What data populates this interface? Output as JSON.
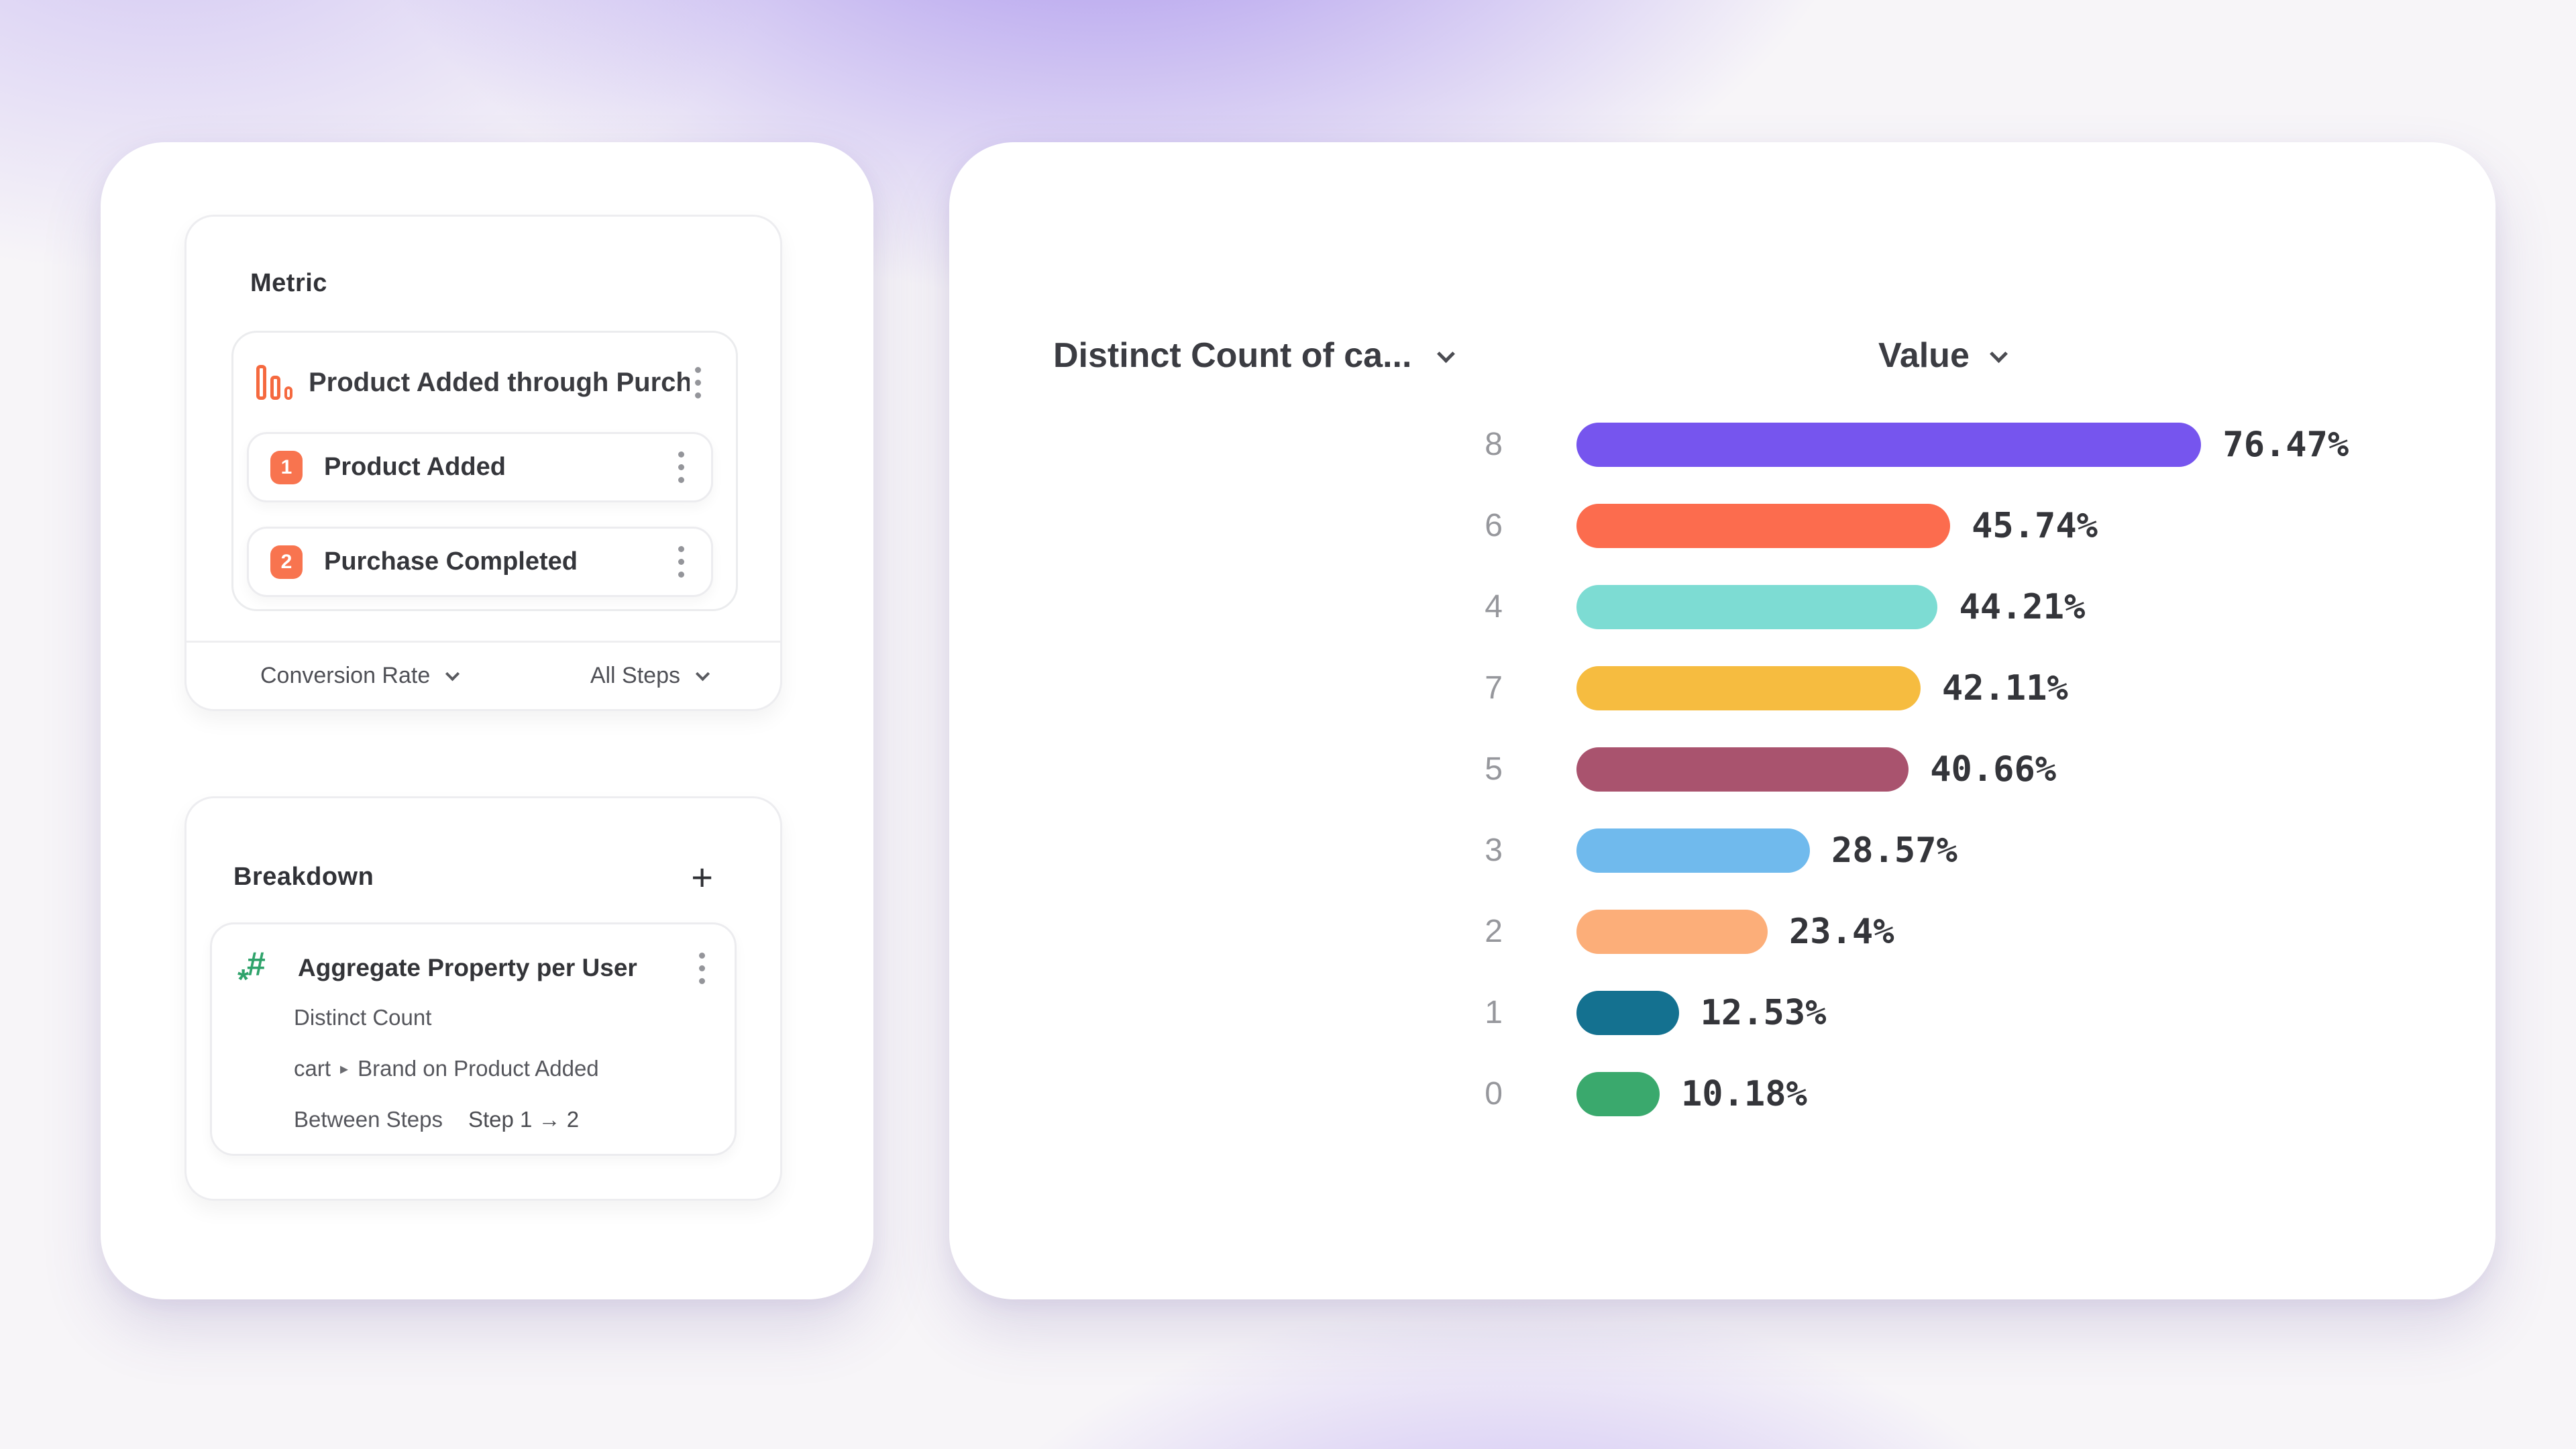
{
  "colors": {
    "accent_orange": "#f8744f",
    "icon_green": "#2fa36b",
    "background_purple": "#8668e8"
  },
  "metric_panel": {
    "title": "Metric",
    "funnel": {
      "title": "Product Added through Purcha...",
      "steps": [
        {
          "number": "1",
          "label": "Product Added"
        },
        {
          "number": "2",
          "label": "Purchase Completed"
        }
      ],
      "measure_dropdown": "Conversion Rate",
      "steps_dropdown": "All Steps"
    }
  },
  "breakdown_panel": {
    "title": "Breakdown",
    "add_button": "+",
    "item": {
      "title": "Aggregate Property per User",
      "aggregation": "Distinct Count",
      "property_prefix": "cart",
      "property_separator": "▸",
      "property_name": "Brand on Product Added",
      "scope_label": "Between Steps",
      "scope_value": "Step 1 → 2"
    }
  },
  "chart_panel": {
    "category_header": "Distinct Count of ca...",
    "value_header": "Value"
  },
  "chart_data": {
    "type": "bar",
    "orientation": "horizontal",
    "title": "",
    "xlabel": "",
    "ylabel": "",
    "xlim": [
      0,
      100
    ],
    "grid": false,
    "categories": [
      "8",
      "6",
      "4",
      "7",
      "5",
      "3",
      "2",
      "1",
      "0"
    ],
    "values": [
      76.47,
      45.74,
      44.21,
      42.11,
      40.66,
      28.57,
      23.4,
      12.53,
      10.18
    ],
    "value_labels": [
      "76.47%",
      "45.74%",
      "44.21%",
      "42.11%",
      "40.66%",
      "28.57%",
      "23.4%",
      "12.53%",
      "10.18%"
    ],
    "bar_colors": [
      "#7655ee",
      "#fc6c4e",
      "#7ddcd3",
      "#f6bc40",
      "#a9536e",
      "#70baed",
      "#fcae79",
      "#147190",
      "#3aa96d"
    ]
  }
}
